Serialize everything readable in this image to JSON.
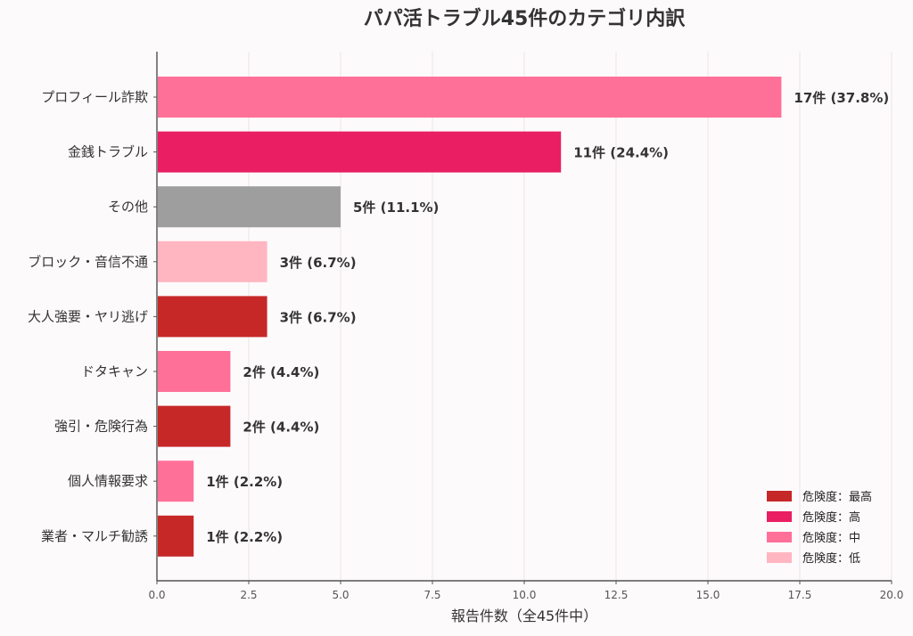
{
  "chart_data": {
    "type": "bar",
    "orientation": "horizontal",
    "title": "パパ活トラブル45件のカテゴリ内訳",
    "xlabel": "報告件数（全45件中）",
    "ylabel": "",
    "xlim": [
      0,
      20
    ],
    "xticks": [
      "0.0",
      "2.5",
      "5.0",
      "7.5",
      "10.0",
      "12.5",
      "15.0",
      "17.5",
      "20.0"
    ],
    "grid": "vertical",
    "legend_position": "bottom-right",
    "categories": [
      "プロフィール詐欺",
      "金銭トラブル",
      "その他",
      "ブロック・音信不通",
      "大人強要・ヤリ逃げ",
      "ドタキャン",
      "強引・危険行為",
      "個人情報要求",
      "業者・マルチ勧誘"
    ],
    "values": [
      17,
      11,
      5,
      3,
      3,
      2,
      2,
      1,
      1
    ],
    "data_labels": [
      "17件 (37.8%)",
      "11件 (24.4%)",
      "5件 (11.1%)",
      "3件 (6.7%)",
      "3件 (6.7%)",
      "2件 (4.4%)",
      "2件 (4.4%)",
      "1件 (2.2%)",
      "1件 (2.2%)"
    ],
    "bar_colors": [
      "#ff7099",
      "#e91e63",
      "#9e9e9e",
      "#ffb6c1",
      "#c62828",
      "#ff7099",
      "#c62828",
      "#ff7099",
      "#c62828"
    ],
    "legend": [
      {
        "label": "危険度：最高",
        "color": "#c62828"
      },
      {
        "label": "危険度：高",
        "color": "#e91e63"
      },
      {
        "label": "危険度：中",
        "color": "#ff7099"
      },
      {
        "label": "危険度：低",
        "color": "#ffb6c1"
      }
    ]
  }
}
